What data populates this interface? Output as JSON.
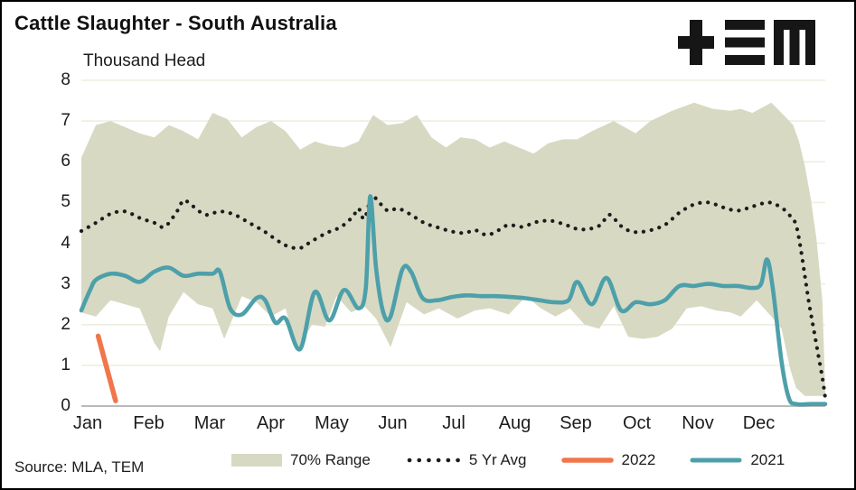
{
  "title": "Cattle Slaughter - South Australia",
  "subtitle": "Thousand Head",
  "source": "Source: MLA, TEM",
  "chart_data": {
    "type": "line",
    "title": "Cattle Slaughter - South Australia",
    "ylabel": "Thousand Head",
    "x_unit": "weeks (Jan-Dec)",
    "x_ticklabels": [
      "Jan",
      "Feb",
      "Mar",
      "Apr",
      "May",
      "Jun",
      "Jul",
      "Aug",
      "Sep",
      "Oct",
      "Nov",
      "Dec"
    ],
    "yticks": [
      0,
      1,
      2,
      3,
      4,
      5,
      6,
      7,
      8
    ],
    "ylim": [
      0,
      8
    ],
    "grid": true,
    "legend_position": "bottom",
    "colors": {
      "background": "#ffffff",
      "border": "#000000",
      "gridline": "#eeeee1",
      "axis_line": "#b9b9b9",
      "text": "#1c1c1c"
    },
    "series": [
      {
        "name": "70% Range",
        "type": "band",
        "color": "#d8d9c3",
        "upper": [
          [
            0,
            6.1
          ],
          [
            1,
            6.9
          ],
          [
            2,
            7.0
          ],
          [
            3,
            6.85
          ],
          [
            4,
            6.7
          ],
          [
            5,
            6.6
          ],
          [
            6,
            6.9
          ],
          [
            7,
            6.75
          ],
          [
            8,
            6.55
          ],
          [
            9,
            7.2
          ],
          [
            10,
            7.05
          ],
          [
            11,
            6.6
          ],
          [
            12,
            6.85
          ],
          [
            13,
            7.0
          ],
          [
            14,
            6.75
          ],
          [
            15,
            6.3
          ],
          [
            16,
            6.5
          ],
          [
            17,
            6.4
          ],
          [
            18,
            6.35
          ],
          [
            19,
            6.5
          ],
          [
            20,
            7.15
          ],
          [
            21,
            6.9
          ],
          [
            22,
            6.95
          ],
          [
            23,
            7.15
          ],
          [
            24,
            6.6
          ],
          [
            25,
            6.35
          ],
          [
            26,
            6.6
          ],
          [
            27,
            6.55
          ],
          [
            28,
            6.35
          ],
          [
            29,
            6.5
          ],
          [
            30,
            6.35
          ],
          [
            31,
            6.2
          ],
          [
            32,
            6.45
          ],
          [
            33,
            6.55
          ],
          [
            34,
            6.55
          ],
          [
            35,
            6.75
          ],
          [
            36.5,
            7.0
          ],
          [
            38,
            6.7
          ],
          [
            39,
            7.0
          ],
          [
            40.5,
            7.25
          ],
          [
            42,
            7.45
          ],
          [
            43.3,
            7.3
          ],
          [
            44.5,
            7.25
          ],
          [
            45.2,
            7.3
          ],
          [
            46,
            7.2
          ],
          [
            47.3,
            7.45
          ],
          [
            48,
            7.2
          ],
          [
            48.8,
            6.9
          ],
          [
            49.2,
            6.5
          ],
          [
            49.6,
            5.9
          ],
          [
            50,
            5.1
          ],
          [
            50.4,
            4.1
          ],
          [
            50.8,
            2.6
          ],
          [
            51,
            0.35
          ]
        ],
        "lower": [
          [
            0,
            2.3
          ],
          [
            1,
            2.2
          ],
          [
            2,
            2.6
          ],
          [
            3,
            2.5
          ],
          [
            4,
            2.4
          ],
          [
            5,
            1.55
          ],
          [
            5.4,
            1.35
          ],
          [
            6,
            2.2
          ],
          [
            7,
            2.8
          ],
          [
            8,
            2.5
          ],
          [
            9,
            2.4
          ],
          [
            9.8,
            1.65
          ],
          [
            11,
            2.7
          ],
          [
            12,
            2.55
          ],
          [
            13,
            2.2
          ],
          [
            14,
            2.4
          ],
          [
            14.8,
            1.35
          ],
          [
            15.8,
            2.0
          ],
          [
            16.7,
            1.95
          ],
          [
            17.5,
            2.7
          ],
          [
            18.5,
            2.3
          ],
          [
            19.4,
            2.45
          ],
          [
            20.2,
            2.15
          ],
          [
            21.2,
            1.45
          ],
          [
            22.3,
            2.55
          ],
          [
            23.5,
            2.25
          ],
          [
            24.5,
            2.4
          ],
          [
            25.8,
            2.15
          ],
          [
            27,
            2.35
          ],
          [
            28,
            2.4
          ],
          [
            29.3,
            2.25
          ],
          [
            30.5,
            2.7
          ],
          [
            31.5,
            2.4
          ],
          [
            32.5,
            2.2
          ],
          [
            33.5,
            2.4
          ],
          [
            34.5,
            2.0
          ],
          [
            35.5,
            1.9
          ],
          [
            36.5,
            2.45
          ],
          [
            37.5,
            1.7
          ],
          [
            38.5,
            1.65
          ],
          [
            39.5,
            1.7
          ],
          [
            40.5,
            1.9
          ],
          [
            41.5,
            2.4
          ],
          [
            42.5,
            2.45
          ],
          [
            43.5,
            2.35
          ],
          [
            44.5,
            2.3
          ],
          [
            45.2,
            2.2
          ],
          [
            46.3,
            2.6
          ],
          [
            47.3,
            2.2
          ],
          [
            48,
            1.9
          ],
          [
            48.6,
            0.9
          ],
          [
            49,
            0.45
          ],
          [
            49.6,
            0.25
          ],
          [
            51,
            0.25
          ]
        ]
      },
      {
        "name": "5 Yr Avg",
        "type": "dotted-line",
        "color": "#1c1c1c",
        "points": [
          [
            0,
            4.3
          ],
          [
            1,
            4.5
          ],
          [
            2,
            4.72
          ],
          [
            3,
            4.78
          ],
          [
            4,
            4.62
          ],
          [
            5,
            4.5
          ],
          [
            5.7,
            4.4
          ],
          [
            6.5,
            4.75
          ],
          [
            7,
            5.05
          ],
          [
            7.5,
            4.95
          ],
          [
            8.5,
            4.7
          ],
          [
            9.5,
            4.78
          ],
          [
            10.5,
            4.7
          ],
          [
            11.5,
            4.5
          ],
          [
            12.5,
            4.3
          ],
          [
            13.5,
            4.05
          ],
          [
            14.2,
            3.92
          ],
          [
            15,
            3.88
          ],
          [
            15.8,
            4.05
          ],
          [
            16.8,
            4.25
          ],
          [
            17.8,
            4.4
          ],
          [
            18.6,
            4.65
          ],
          [
            19,
            4.85
          ],
          [
            19.4,
            4.6
          ],
          [
            19.9,
            5.15
          ],
          [
            20.3,
            5.05
          ],
          [
            21,
            4.8
          ],
          [
            21.7,
            4.85
          ],
          [
            22.5,
            4.72
          ],
          [
            23.5,
            4.5
          ],
          [
            24.5,
            4.38
          ],
          [
            25.5,
            4.28
          ],
          [
            26.3,
            4.25
          ],
          [
            27,
            4.32
          ],
          [
            27.8,
            4.2
          ],
          [
            28.6,
            4.32
          ],
          [
            29.3,
            4.45
          ],
          [
            30.2,
            4.4
          ],
          [
            31.2,
            4.52
          ],
          [
            32.2,
            4.55
          ],
          [
            33.2,
            4.45
          ],
          [
            34,
            4.35
          ],
          [
            34.8,
            4.35
          ],
          [
            35.6,
            4.45
          ],
          [
            36.2,
            4.7
          ],
          [
            37,
            4.42
          ],
          [
            37.8,
            4.28
          ],
          [
            38.8,
            4.3
          ],
          [
            40,
            4.45
          ],
          [
            41,
            4.75
          ],
          [
            42,
            4.95
          ],
          [
            43,
            5.0
          ],
          [
            44,
            4.88
          ],
          [
            45,
            4.8
          ],
          [
            46,
            4.9
          ],
          [
            47,
            5.0
          ],
          [
            47.6,
            4.95
          ],
          [
            48.2,
            4.82
          ],
          [
            48.7,
            4.62
          ],
          [
            49,
            4.45
          ],
          [
            49.3,
            3.9
          ],
          [
            49.6,
            3.2
          ],
          [
            49.9,
            2.5
          ],
          [
            50.2,
            1.9
          ],
          [
            50.5,
            1.3
          ],
          [
            50.8,
            0.7
          ],
          [
            51,
            0.2
          ]
        ]
      },
      {
        "name": "2022",
        "type": "line",
        "color": "#f0764b",
        "points": [
          [
            1.15,
            1.72
          ],
          [
            2.35,
            0.13
          ]
        ]
      },
      {
        "name": "2021",
        "type": "line",
        "color": "#4da0aa",
        "points": [
          [
            0,
            2.35
          ],
          [
            0.6,
            2.85
          ],
          [
            1,
            3.1
          ],
          [
            2,
            3.25
          ],
          [
            3,
            3.2
          ],
          [
            4,
            3.05
          ],
          [
            5,
            3.3
          ],
          [
            6,
            3.4
          ],
          [
            7,
            3.2
          ],
          [
            8,
            3.25
          ],
          [
            9,
            3.25
          ],
          [
            9.5,
            3.3
          ],
          [
            10.2,
            2.4
          ],
          [
            11,
            2.25
          ],
          [
            12,
            2.65
          ],
          [
            12.6,
            2.6
          ],
          [
            13.3,
            2.05
          ],
          [
            14,
            2.15
          ],
          [
            15,
            1.4
          ],
          [
            16,
            2.8
          ],
          [
            17,
            2.1
          ],
          [
            18,
            2.85
          ],
          [
            19,
            2.4
          ],
          [
            19.5,
            2.9
          ],
          [
            19.8,
            5.15
          ],
          [
            20.2,
            3.4
          ],
          [
            20.7,
            2.3
          ],
          [
            21.2,
            2.2
          ],
          [
            22,
            3.35
          ],
          [
            22.6,
            3.3
          ],
          [
            23.4,
            2.65
          ],
          [
            24.4,
            2.6
          ],
          [
            25.4,
            2.68
          ],
          [
            26.4,
            2.72
          ],
          [
            27.4,
            2.7
          ],
          [
            28.4,
            2.7
          ],
          [
            29.4,
            2.68
          ],
          [
            30.4,
            2.65
          ],
          [
            31.4,
            2.6
          ],
          [
            32.4,
            2.55
          ],
          [
            33.4,
            2.6
          ],
          [
            34,
            3.05
          ],
          [
            35,
            2.5
          ],
          [
            36,
            3.15
          ],
          [
            37,
            2.35
          ],
          [
            38,
            2.55
          ],
          [
            39,
            2.5
          ],
          [
            40,
            2.6
          ],
          [
            41,
            2.95
          ],
          [
            42,
            2.95
          ],
          [
            43,
            3.0
          ],
          [
            44,
            2.95
          ],
          [
            45,
            2.95
          ],
          [
            46,
            2.9
          ],
          [
            46.6,
            3.0
          ],
          [
            47,
            3.6
          ],
          [
            47.4,
            2.9
          ],
          [
            48,
            1.1
          ],
          [
            48.5,
            0.2
          ],
          [
            49,
            0.05
          ],
          [
            50,
            0.05
          ],
          [
            51,
            0.05
          ]
        ]
      }
    ]
  }
}
